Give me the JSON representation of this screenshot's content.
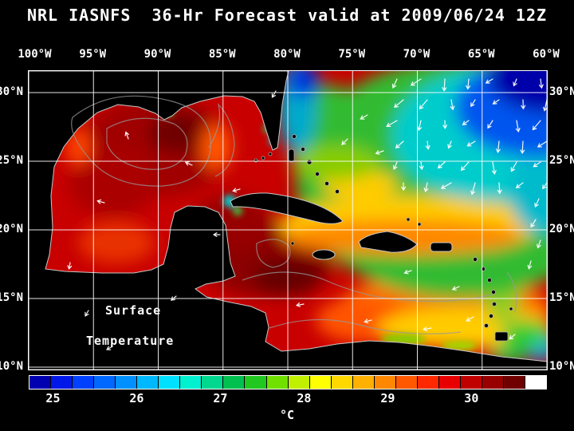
{
  "title": "NRL IASNFS  36-Hr Forecast valid at 2009/06/24 12Z",
  "map": {
    "overlay_label": [
      "Surface",
      "Temperature"
    ],
    "lon_ticks": [
      "100°W",
      "95°W",
      "90°W",
      "85°W",
      "80°W",
      "75°W",
      "70°W",
      "65°W",
      "60°W"
    ],
    "lat_ticks": [
      "30°N",
      "25°N",
      "20°N",
      "15°N",
      "10°N"
    ]
  },
  "colorbar": {
    "unit": "°C",
    "tick_labels": [
      "25",
      "26",
      "27",
      "28",
      "29",
      "30"
    ],
    "segment_colors": [
      "#0000b0",
      "#0018e8",
      "#0040ff",
      "#0068ff",
      "#0090ff",
      "#00b8ff",
      "#00e0ff",
      "#00f0d0",
      "#00d890",
      "#00c050",
      "#20c820",
      "#70e000",
      "#c0f000",
      "#ffff00",
      "#ffd800",
      "#ffb000",
      "#ff8800",
      "#ff5800",
      "#ff2800",
      "#e80000",
      "#c00000",
      "#980000",
      "#700000",
      "#ffffff"
    ]
  },
  "chart_data": {
    "type": "heatmap",
    "title": "NRL IASNFS 36-Hr Forecast valid at 2009/06/24 12Z",
    "variable": "Surface Temperature",
    "units": "°C",
    "x_ticks": [
      "100°W",
      "95°W",
      "90°W",
      "85°W",
      "80°W",
      "75°W",
      "70°W",
      "65°W",
      "60°W"
    ],
    "y_ticks": [
      "30°N",
      "25°N",
      "20°N",
      "15°N",
      "10°N"
    ],
    "colorbar_ticks": [
      25,
      26,
      27,
      28,
      29,
      30
    ],
    "legend_position": "bottom",
    "grid": true
  }
}
